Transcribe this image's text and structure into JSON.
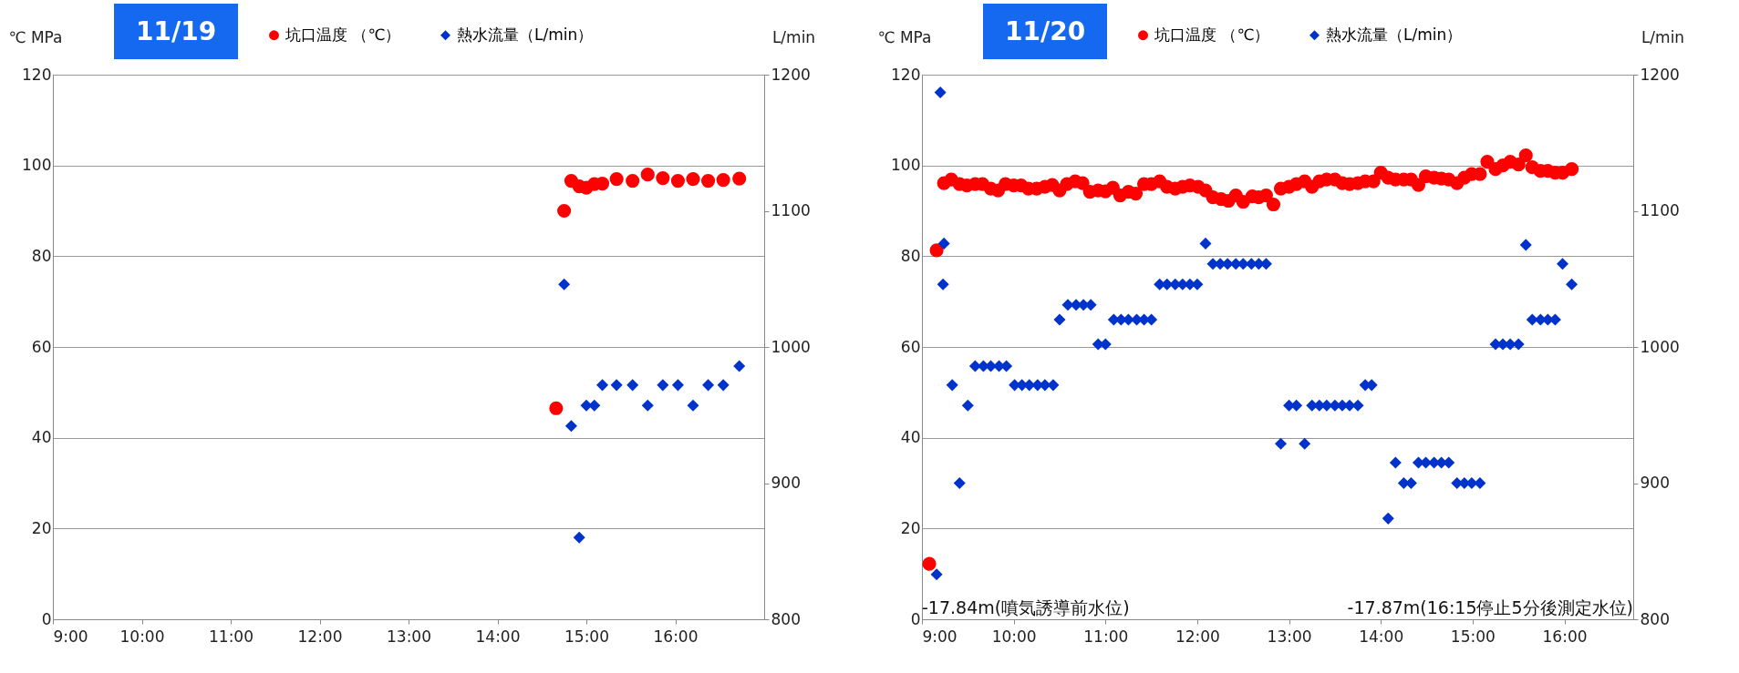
{
  "chart_data": [
    {
      "type": "scatter",
      "title": "11/19",
      "ylabel": "℃ MPa",
      "y2label": "L/min",
      "xlim": [
        9,
        17
      ],
      "xticks": [
        {
          "value": 9,
          "label": "9:00"
        },
        {
          "value": 10,
          "label": "10:00"
        },
        {
          "value": 11,
          "label": "11:00"
        },
        {
          "value": 12,
          "label": "12:00"
        },
        {
          "value": 13,
          "label": "13:00"
        },
        {
          "value": 14,
          "label": "14:00"
        },
        {
          "value": 15,
          "label": "15:00"
        },
        {
          "value": 16,
          "label": "16:00"
        }
      ],
      "ylim": [
        0,
        120
      ],
      "yticks": [
        0,
        20,
        40,
        60,
        80,
        100,
        120
      ],
      "y2lim": [
        800,
        1200
      ],
      "y2ticks": [
        800,
        900,
        1000,
        1100,
        1200
      ],
      "grid": "y",
      "legend": "top",
      "series": [
        {
          "name": "坑口温度 （℃）",
          "color": "#ff0000",
          "marker": "circle",
          "x": [
            14.66,
            14.75,
            14.83,
            14.92,
            15.0,
            15.09,
            15.18,
            15.34,
            15.52,
            15.69,
            15.86,
            16.03,
            16.2,
            16.37,
            16.54,
            16.72
          ],
          "values": [
            46.5,
            90,
            96.6,
            95.4,
            95.1,
            95.9,
            96,
            97,
            96.6,
            98,
            97.2,
            96.6,
            97,
            96.6,
            96.8,
            97.1
          ]
        },
        {
          "name": "熱水流量（L/min）",
          "color": "#0033cc",
          "marker": "diamond",
          "axis": "y2",
          "x": [
            14.75,
            14.83,
            14.92,
            15.0,
            15.09,
            15.18,
            15.34,
            15.52,
            15.69,
            15.86,
            16.03,
            16.2,
            16.37,
            16.54,
            16.72
          ],
          "values": [
            1046,
            942,
            860,
            957,
            957,
            972,
            972,
            972,
            957,
            972,
            972,
            957,
            972,
            972,
            986
          ]
        }
      ]
    },
    {
      "type": "scatter",
      "title": "11/20",
      "ylabel": "℃ MPa",
      "y2label": "L/min",
      "xlim": [
        9,
        16.75
      ],
      "xticks": [
        {
          "value": 9,
          "label": "9:00"
        },
        {
          "value": 10,
          "label": "10:00"
        },
        {
          "value": 11,
          "label": "11:00"
        },
        {
          "value": 12,
          "label": "12:00"
        },
        {
          "value": 13,
          "label": "13:00"
        },
        {
          "value": 14,
          "label": "14:00"
        },
        {
          "value": 15,
          "label": "15:00"
        },
        {
          "value": 16,
          "label": "16:00"
        }
      ],
      "ylim": [
        0,
        120
      ],
      "yticks": [
        0,
        20,
        40,
        60,
        80,
        100,
        120
      ],
      "y2lim": [
        800,
        1200
      ],
      "y2ticks": [
        800,
        900,
        1000,
        1100,
        1200
      ],
      "grid": "y",
      "legend": "top",
      "annotations": [
        "-17.84m(噴気誘導前水位)",
        "-17.87m(16:15停止5分後測定水位)"
      ],
      "series": [
        {
          "name": "坑口温度 （℃）",
          "color": "#ff0000",
          "marker": "circle",
          "x": [
            9.08,
            9.16,
            9.24,
            9.32,
            9.41,
            9.49,
            9.58,
            9.66,
            9.75,
            9.83,
            9.91,
            10.0,
            10.08,
            10.16,
            10.25,
            10.34,
            10.42,
            10.5,
            10.58,
            10.67,
            10.75,
            10.83,
            10.92,
            11.0,
            11.08,
            11.16,
            11.25,
            11.33,
            11.42,
            11.5,
            11.59,
            11.67,
            11.76,
            11.84,
            11.92,
            12.01,
            12.09,
            12.17,
            12.26,
            12.34,
            12.42,
            12.5,
            12.6,
            12.67,
            12.75,
            12.83,
            12.91,
            13.0,
            13.08,
            13.17,
            13.25,
            13.33,
            13.41,
            13.5,
            13.58,
            13.66,
            13.75,
            13.83,
            13.92,
            14.0,
            14.08,
            14.16,
            14.25,
            14.33,
            14.41,
            14.49,
            14.58,
            14.66,
            14.74,
            14.83,
            14.91,
            14.99,
            15.08,
            15.16,
            15.25,
            15.33,
            15.41,
            15.5,
            15.58,
            15.65,
            15.74,
            15.82,
            15.9,
            15.98,
            16.08
          ],
          "values": [
            12.2,
            81.3,
            96.1,
            96.9,
            95.9,
            95.6,
            95.9,
            95.9,
            94.9,
            94.5,
            95.9,
            95.6,
            95.6,
            94.9,
            94.9,
            95.3,
            95.7,
            94.5,
            95.9,
            96.5,
            96.1,
            94.2,
            94.5,
            94.3,
            95.1,
            93.4,
            94.2,
            93.8,
            95.9,
            95.9,
            96.5,
            95.3,
            94.9,
            95.3,
            95.6,
            95.3,
            94.5,
            93.0,
            92.6,
            92.2,
            93.4,
            92.0,
            93.2,
            93.0,
            93.4,
            91.4,
            94.9,
            95.3,
            95.9,
            96.5,
            95.3,
            96.5,
            96.9,
            96.9,
            96.1,
            95.9,
            96.1,
            96.5,
            96.5,
            98.4,
            97.3,
            96.9,
            96.9,
            96.9,
            95.7,
            97.6,
            97.3,
            97.1,
            96.9,
            96.1,
            97.3,
            98.1,
            98.1,
            100.8,
            99.2,
            100.0,
            100.8,
            100.2,
            102.2,
            99.6,
            98.8,
            98.8,
            98.4,
            98.4,
            99.2
          ]
        },
        {
          "name": "熱水流量（L/min）",
          "color": "#0033cc",
          "marker": "diamond",
          "axis": "y2",
          "x": [
            9.16,
            9.2,
            9.23,
            9.24,
            9.33,
            9.41,
            9.5,
            9.58,
            9.67,
            9.75,
            9.84,
            9.92,
            10.01,
            10.09,
            10.17,
            10.26,
            10.34,
            10.43,
            10.5,
            10.59,
            10.68,
            10.76,
            10.84,
            10.92,
            11.0,
            11.09,
            11.17,
            11.25,
            11.34,
            11.42,
            11.5,
            11.59,
            11.67,
            11.76,
            11.84,
            11.92,
            12.0,
            12.09,
            12.17,
            12.25,
            12.33,
            12.42,
            12.5,
            12.59,
            12.67,
            12.75,
            12.91,
            13.0,
            13.08,
            13.17,
            13.25,
            13.33,
            13.41,
            13.5,
            13.58,
            13.66,
            13.75,
            13.83,
            13.9,
            14.08,
            14.16,
            14.25,
            14.33,
            14.41,
            14.49,
            14.58,
            14.66,
            14.74,
            14.83,
            14.91,
            14.99,
            15.08,
            15.25,
            15.33,
            15.41,
            15.5,
            15.58,
            15.65,
            15.74,
            15.82,
            15.9,
            15.98,
            16.08
          ],
          "values": [
            833,
            1187,
            1046,
            1076,
            972,
            900,
            957,
            986,
            986,
            986,
            986,
            986,
            972,
            972,
            972,
            972,
            972,
            972,
            1020,
            1031,
            1031,
            1031,
            1031,
            1002,
            1002,
            1020,
            1020,
            1020,
            1020,
            1020,
            1020,
            1046,
            1046,
            1046,
            1046,
            1046,
            1046,
            1076,
            1061,
            1061,
            1061,
            1061,
            1061,
            1061,
            1061,
            1061,
            929,
            957,
            957,
            929,
            957,
            957,
            957,
            957,
            957,
            957,
            957,
            972,
            972,
            874,
            915,
            900,
            900,
            915,
            915,
            915,
            915,
            915,
            900,
            900,
            900,
            900,
            1002,
            1002,
            1002,
            1002,
            1075,
            1020,
            1020,
            1020,
            1020,
            1061,
            1046
          ]
        }
      ]
    }
  ]
}
